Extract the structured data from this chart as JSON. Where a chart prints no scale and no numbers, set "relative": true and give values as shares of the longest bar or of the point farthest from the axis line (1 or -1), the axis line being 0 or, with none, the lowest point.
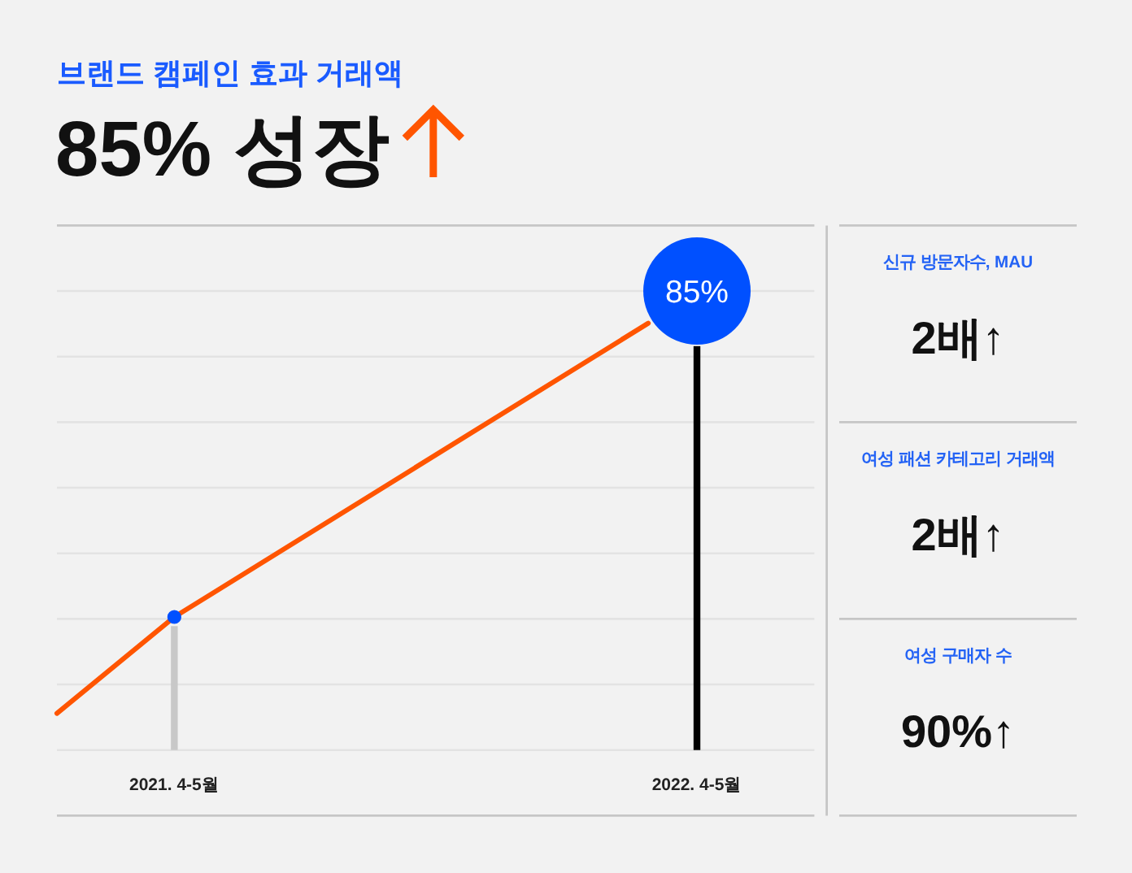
{
  "chart_data": [
    {
      "type": "line",
      "title": "브랜드 캠페인 효과 거래액",
      "subtitle": "85% 성장",
      "relative": true,
      "grid": "y",
      "xlim": [
        "2021-02-08",
        "2022-07-22"
      ],
      "xticks": [
        {
          "value": "2021-05",
          "label": "2021. 4-5월"
        },
        {
          "value": "2022-05",
          "label": "2022. 4-5월"
        }
      ],
      "annotations": [
        {
          "text": "85%",
          "x": "2022-05",
          "y": 1
        }
      ],
      "series": [
        {
          "type": "bar",
          "colors": [
            "#c8c8c8",
            "#000000"
          ],
          "x": [
            "2021-05",
            "2022-05"
          ],
          "values": [
            0.27,
            0.88
          ]
        },
        {
          "type": "line",
          "color": "#ff5500",
          "x": [
            "2021-02-08",
            "2021-05",
            "2022-03-28"
          ],
          "values": [
            0.08,
            0.29,
            0.93
          ]
        },
        {
          "type": "scatter",
          "color": "#0050ff",
          "marker": "circle",
          "x": [
            "2021-05",
            "2022-05"
          ],
          "values": [
            0.29,
            1
          ]
        }
      ]
    },
    {
      "type": "other",
      "annotations": [
        "신규 방문자수, MAU",
        "2배↑",
        "여성 패션 카테고리 거래액",
        "2배↑",
        "여성 구매자 수",
        "90%↑"
      ]
    }
  ]
}
